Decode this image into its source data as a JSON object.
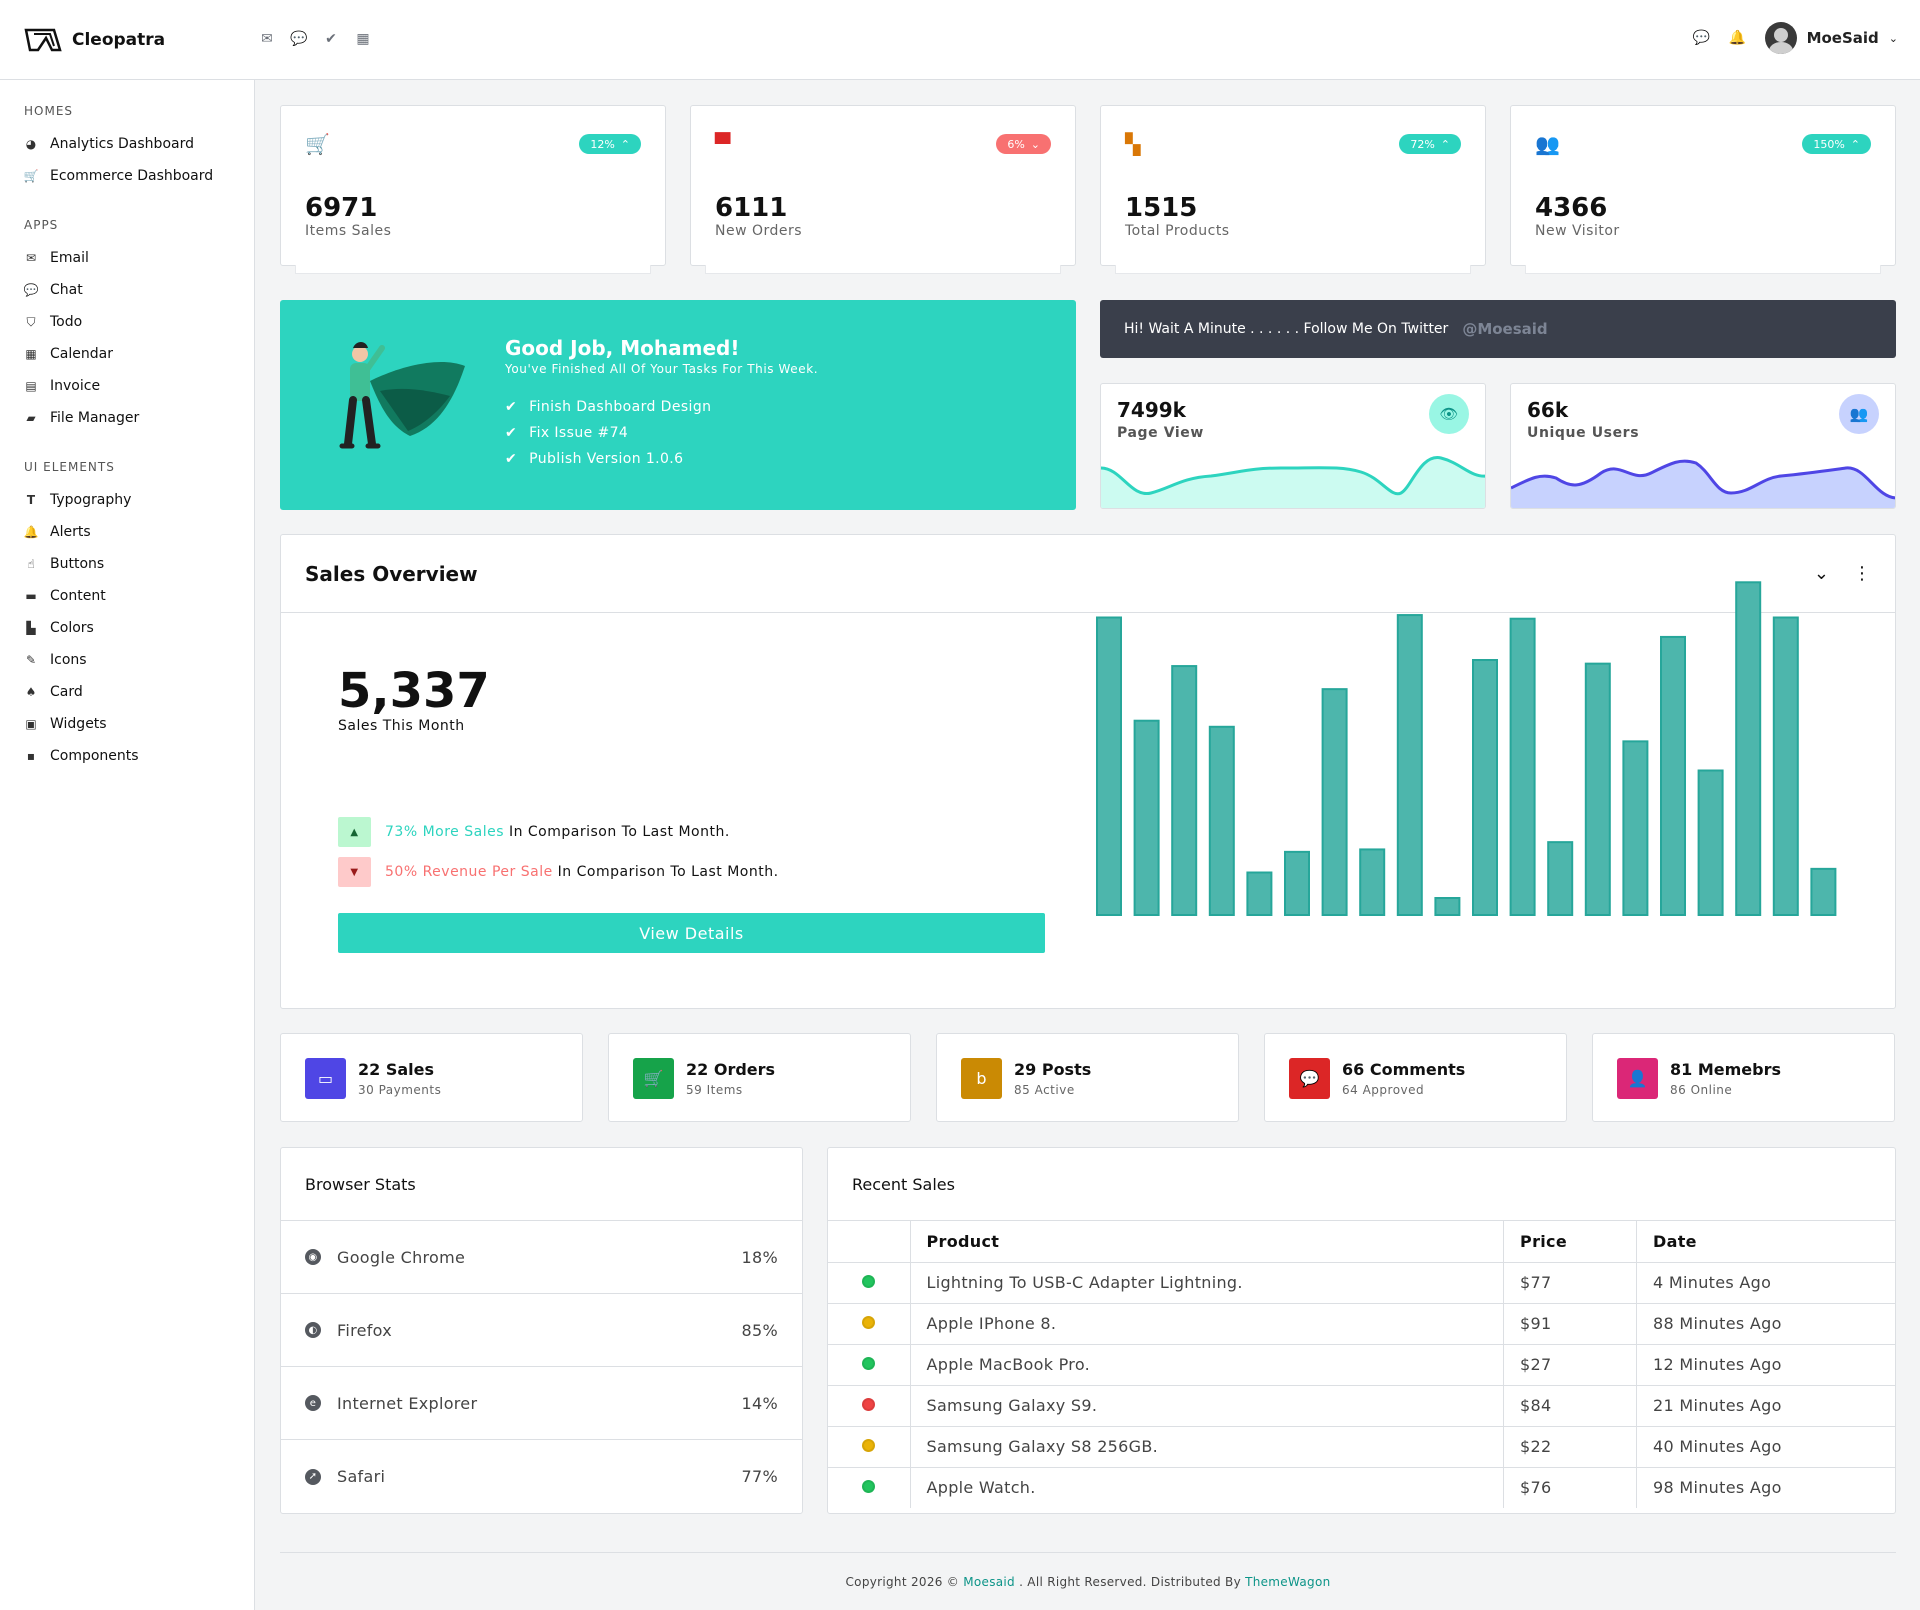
{
  "brand": {
    "name": "Cleopatra"
  },
  "topbar": {
    "icons": [
      "mail-icon",
      "chat-icon",
      "check-icon",
      "calendar-icon"
    ],
    "right_icons": [
      "chat-icon",
      "bell-icon"
    ],
    "user": "MoeSaid"
  },
  "sidebar": {
    "sections": [
      {
        "title": "HOMES",
        "items": [
          {
            "label": "Analytics Dashboard",
            "icon": "pie-icon"
          },
          {
            "label": "Ecommerce Dashboard",
            "icon": "cart-icon"
          }
        ]
      },
      {
        "title": "APPS",
        "items": [
          {
            "label": "Email",
            "icon": "mail-icon"
          },
          {
            "label": "Chat",
            "icon": "chat-icon"
          },
          {
            "label": "Todo",
            "icon": "shield-check-icon"
          },
          {
            "label": "Calendar",
            "icon": "calendar-icon"
          },
          {
            "label": "Invoice",
            "icon": "file-icon"
          },
          {
            "label": "File Manager",
            "icon": "folder-icon"
          }
        ]
      },
      {
        "title": "UI ELEMENTS",
        "items": [
          {
            "label": "Typography",
            "icon": "text-icon"
          },
          {
            "label": "Alerts",
            "icon": "bell-icon"
          },
          {
            "label": "Buttons",
            "icon": "pointer-icon"
          },
          {
            "label": "Content",
            "icon": "box-icon"
          },
          {
            "label": "Colors",
            "icon": "palette-icon"
          },
          {
            "label": "Icons",
            "icon": "icons-icon"
          },
          {
            "label": "Card",
            "icon": "card-icon"
          },
          {
            "label": "Widgets",
            "icon": "widget-icon"
          },
          {
            "label": "Components",
            "icon": "components-icon"
          }
        ]
      }
    ]
  },
  "stats": [
    {
      "value": "6971",
      "label": "Items Sales",
      "badge": "12%",
      "trend": "up",
      "icon": "cart-icon",
      "icon_color": "#4f46e5",
      "badge_color": "#2dd4bf"
    },
    {
      "value": "6111",
      "label": "New Orders",
      "badge": "6%",
      "trend": "down",
      "icon": "store-icon",
      "icon_color": "#dc2626",
      "badge_color": "#f87171"
    },
    {
      "value": "1515",
      "label": "Total Products",
      "badge": "72%",
      "trend": "up",
      "icon": "boxes-icon",
      "icon_color": "#d97706",
      "badge_color": "#2dd4bf"
    },
    {
      "value": "4366",
      "label": "New Visitor",
      "badge": "150%",
      "trend": "up",
      "icon": "users-icon",
      "icon_color": "#16a34a",
      "badge_color": "#2dd4bf"
    }
  ],
  "congrats": {
    "title": "Good Job, Mohamed!",
    "subtitle": "You've Finished All Of Your Tasks For This Week.",
    "tasks": [
      "Finish Dashboard Design",
      "Fix Issue #74",
      "Publish Version 1.0.6"
    ]
  },
  "twitter": {
    "text": "Hi! Wait A Minute . . . . . . Follow Me On Twitter",
    "handle": "@Moesaid"
  },
  "mini": [
    {
      "value": "7499k",
      "label": "Page View",
      "icon": "eye-icon",
      "color": "#2dd4bf"
    },
    {
      "value": "66k",
      "label": "Unique Users",
      "icon": "users-icon",
      "color": "#4f46e5"
    }
  ],
  "sales": {
    "title": "Sales Overview",
    "number": "5,337",
    "number_label": "Sales This Month",
    "up_highlight": "73% More Sales",
    "up_rest": " In Comparison To Last Month.",
    "down_highlight": "50% Revenue Per Sale",
    "down_rest": " In Comparison To Last Month.",
    "button": "View Details"
  },
  "chart_data": {
    "type": "bar",
    "values": [
      245,
      160,
      205,
      155,
      35,
      52,
      186,
      54,
      247,
      14,
      210,
      244,
      60,
      207,
      143,
      229,
      119,
      274,
      245,
      38
    ],
    "ylim": [
      0,
      280
    ],
    "color": "#4db6ac"
  },
  "summary": [
    {
      "title": "22 Sales",
      "sub": "30 Payments",
      "icon": "wallet-icon",
      "color": "#4f46e5"
    },
    {
      "title": "22 Orders",
      "sub": "59 Items",
      "icon": "cart-icon",
      "color": "#16a34a"
    },
    {
      "title": "29 Posts",
      "sub": "85 Active",
      "icon": "blog-icon",
      "color": "#ca8a04"
    },
    {
      "title": "66 Comments",
      "sub": "64 Approved",
      "icon": "comments-icon",
      "color": "#dc2626"
    },
    {
      "title": "81 Memebrs",
      "sub": "86 Online",
      "icon": "user-icon",
      "color": "#db2777"
    }
  ],
  "browser": {
    "title": "Browser Stats",
    "rows": [
      {
        "name": "Google Chrome",
        "value": "18%",
        "icon": "chrome-icon"
      },
      {
        "name": "Firefox",
        "value": "85%",
        "icon": "firefox-icon"
      },
      {
        "name": "Internet Explorer",
        "value": "14%",
        "icon": "ie-icon"
      },
      {
        "name": "Safari",
        "value": "77%",
        "icon": "safari-icon"
      }
    ]
  },
  "recent": {
    "title": "Recent Sales",
    "headers": [
      "Product",
      "Price",
      "Date"
    ],
    "rows": [
      {
        "product": "Lightning To USB-C Adapter Lightning.",
        "price": "$77",
        "date": "4 Minutes Ago",
        "status": "#22c55e"
      },
      {
        "product": "Apple IPhone 8.",
        "price": "$91",
        "date": "88 Minutes Ago",
        "status": "#eab308"
      },
      {
        "product": "Apple MacBook Pro.",
        "price": "$27",
        "date": "12 Minutes Ago",
        "status": "#22c55e"
      },
      {
        "product": "Samsung Galaxy S9.",
        "price": "$84",
        "date": "21 Minutes Ago",
        "status": "#ef4444"
      },
      {
        "product": "Samsung Galaxy S8 256GB.",
        "price": "$22",
        "date": "40 Minutes Ago",
        "status": "#eab308"
      },
      {
        "product": "Apple Watch.",
        "price": "$76",
        "date": "98 Minutes Ago",
        "status": "#22c55e"
      }
    ]
  },
  "footer": {
    "prefix": "Copyright 2026 © ",
    "author": "Moesaid",
    "middle": " . All Right Reserved. Distributed By ",
    "dist": "ThemeWagon"
  }
}
